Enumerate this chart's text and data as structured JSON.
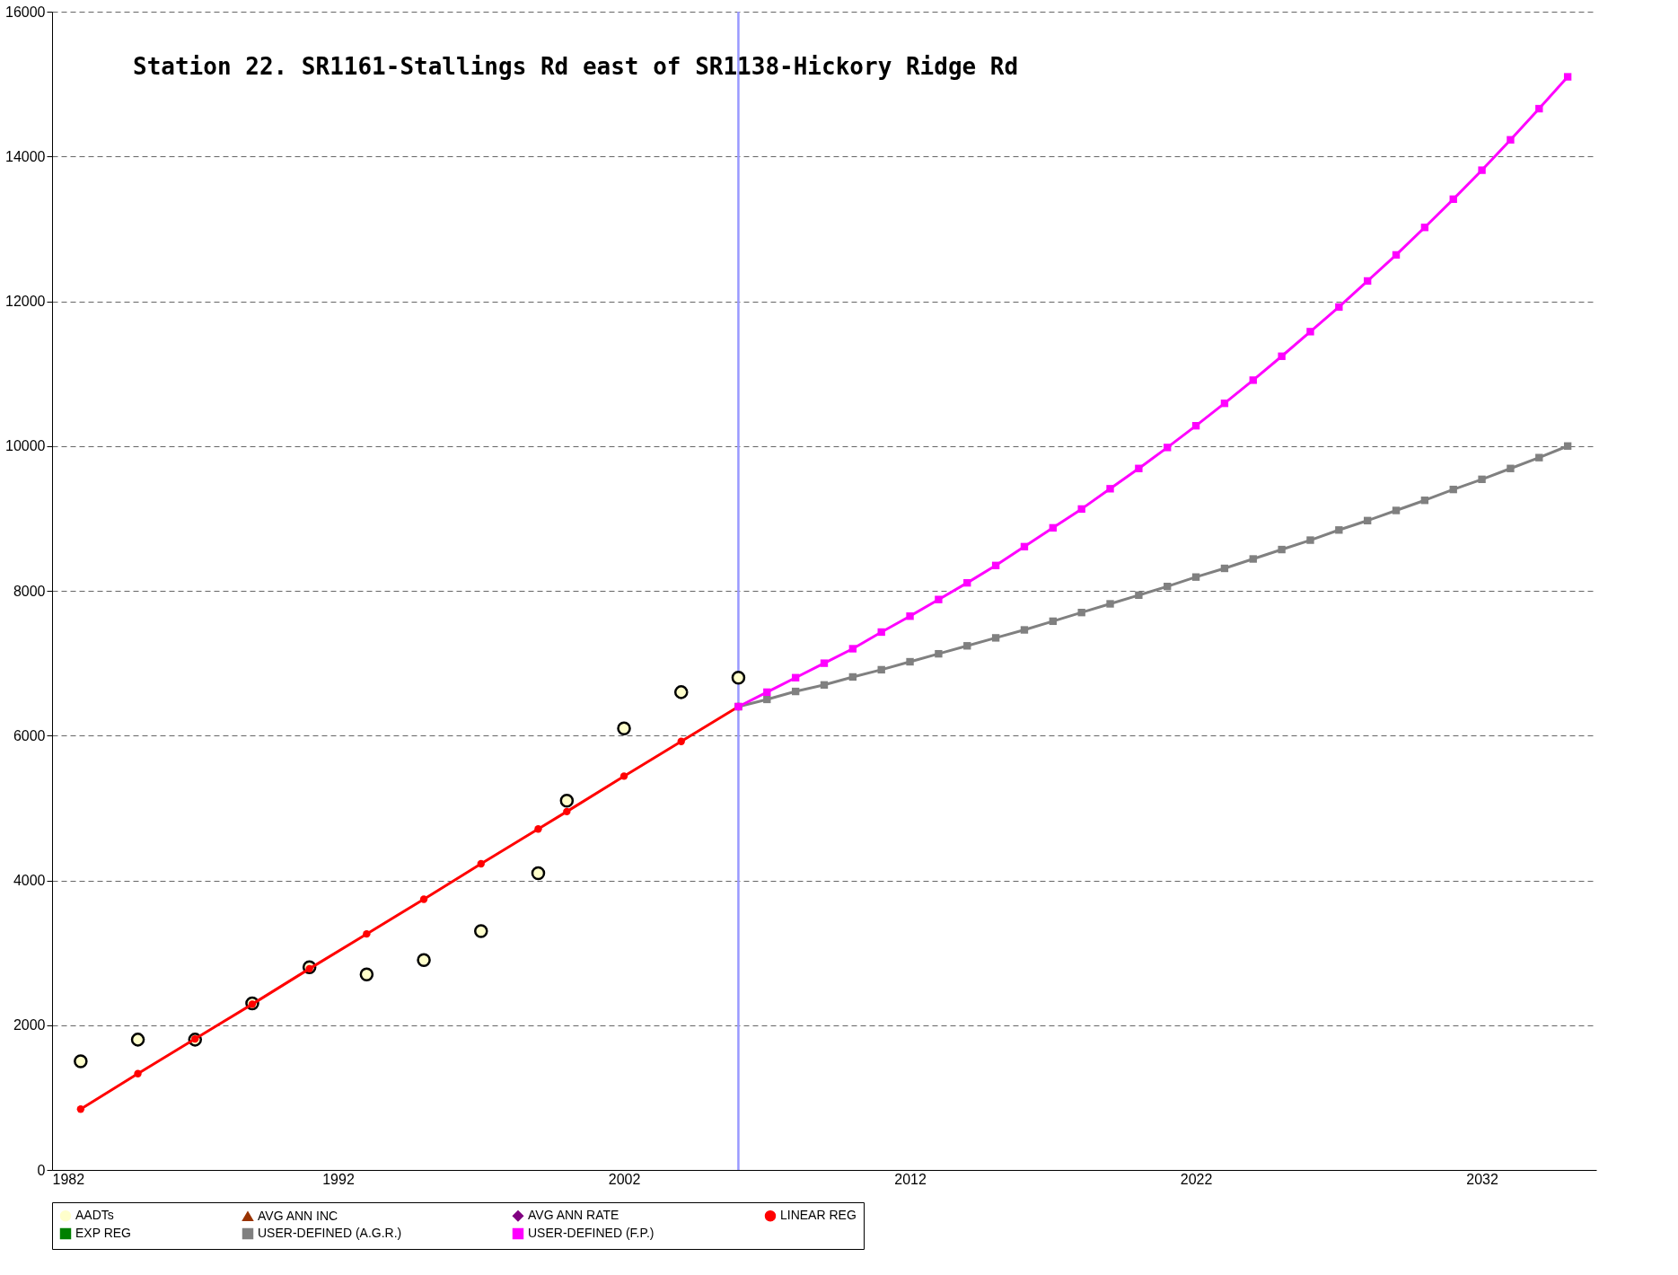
{
  "chart_data": {
    "type": "line",
    "title": "Station 22. SR1161-Stallings Rd east of SR1138-Hickory Ridge Rd",
    "xlim": [
      1982,
      2036
    ],
    "xticks": [
      1982,
      1992,
      2002,
      2012,
      2022,
      2032
    ],
    "ylim": [
      0,
      16000
    ],
    "yticks": [
      0,
      2000,
      4000,
      6000,
      8000,
      10000,
      12000,
      14000,
      16000
    ],
    "grid": "y",
    "legend": "bottom",
    "ref_lines": [
      {
        "axis": "x",
        "value": 2006,
        "color": "#9999ff"
      }
    ],
    "series": [
      {
        "name": "AADTs",
        "type": "scatter",
        "marker": "circle",
        "color": "#ffffcc",
        "x": [
          1983,
          1985,
          1987,
          1989,
          1991,
          1993,
          1995,
          1997,
          1999,
          2000,
          2002,
          2004,
          2006
        ],
        "values": [
          1500,
          1800,
          1800,
          2300,
          2800,
          2700,
          2900,
          3300,
          4100,
          5100,
          6100,
          6600,
          6800
        ]
      },
      {
        "name": "AVG ANN INC",
        "marker": "triangle",
        "color": "#993300"
      },
      {
        "name": "AVG ANN RATE",
        "marker": "diamond",
        "color": "#800080"
      },
      {
        "name": "LINEAR REG",
        "marker": "circle",
        "color": "#ff0000",
        "x": [
          1983,
          1985,
          1987,
          1989,
          1991,
          1993,
          1995,
          1997,
          1999,
          2000,
          2002,
          2004,
          2006
        ],
        "values": [
          840,
          1330,
          1810,
          2290,
          2780,
          3260,
          3740,
          4230,
          4710,
          4950,
          5440,
          5920,
          6400
        ]
      },
      {
        "name": "EXP REG",
        "marker": "square",
        "color": "#008000"
      },
      {
        "name": "USER-DEFINED (A.G.R.)",
        "marker": "square",
        "color": "#808080",
        "x": [
          2006,
          2007,
          2008,
          2009,
          2010,
          2011,
          2012,
          2013,
          2014,
          2015,
          2016,
          2017,
          2018,
          2019,
          2020,
          2021,
          2022,
          2023,
          2024,
          2025,
          2026,
          2027,
          2028,
          2029,
          2030,
          2031,
          2032,
          2033,
          2034,
          2035
        ],
        "values": [
          6400,
          6500,
          6610,
          6700,
          6810,
          6910,
          7020,
          7130,
          7240,
          7350,
          7460,
          7580,
          7700,
          7820,
          7940,
          8060,
          8190,
          8310,
          8440,
          8570,
          8700,
          8840,
          8970,
          9110,
          9250,
          9400,
          9540,
          9690,
          9840,
          10000
        ]
      },
      {
        "name": "USER-DEFINED (F.P.)",
        "marker": "square",
        "color": "#ff00ff",
        "x": [
          2006,
          2007,
          2008,
          2009,
          2010,
          2011,
          2012,
          2013,
          2014,
          2015,
          2016,
          2017,
          2018,
          2019,
          2020,
          2021,
          2022,
          2023,
          2024,
          2025,
          2026,
          2027,
          2028,
          2029,
          2030,
          2031,
          2032,
          2033,
          2034,
          2035
        ],
        "values": [
          6400,
          6600,
          6800,
          7000,
          7200,
          7430,
          7650,
          7880,
          8110,
          8350,
          8610,
          8870,
          9130,
          9410,
          9690,
          9980,
          10280,
          10590,
          10910,
          11240,
          11580,
          11920,
          12280,
          12640,
          13020,
          13410,
          13810,
          14230,
          14660,
          15100
        ]
      }
    ]
  }
}
